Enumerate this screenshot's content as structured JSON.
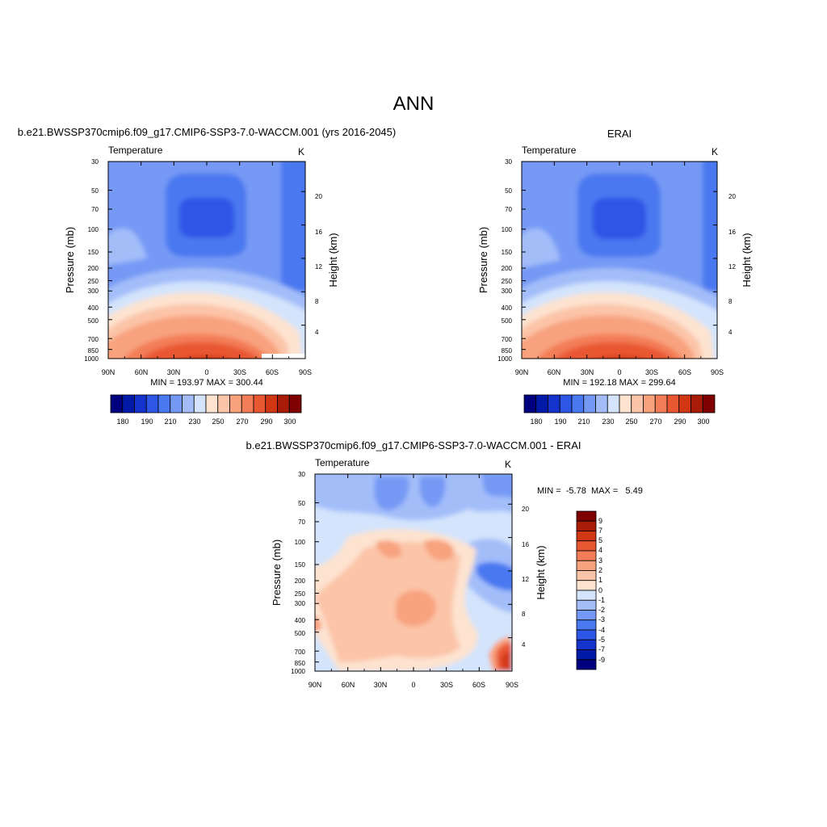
{
  "figure": {
    "title": "ANN"
  },
  "panels": [
    {
      "id": "model",
      "header": "b.e21.BWSSP370cmip6.f09_g17.CMIP6-SSP3-7.0-WACCM.001 (yrs 2016-2045)",
      "left_label": "Temperature",
      "right_label": "K",
      "stats": "MIN = 193.97  MAX = 300.44",
      "ylabel": "Pressure (mb)",
      "y2label": "Height (km)"
    },
    {
      "id": "obs",
      "header": "ERAI",
      "left_label": "Temperature",
      "right_label": "K",
      "stats": "MIN = 192.18  MAX = 299.64",
      "ylabel": "Pressure (mb)",
      "y2label": "Height (km)"
    },
    {
      "id": "diff",
      "header": "b.e21.BWSSP370cmip6.f09_g17.CMIP6-SSP3-7.0-WACCM.001 - ERAI",
      "left_label": "Temperature",
      "right_label": "K",
      "stats": "MIN =  -5.78  MAX =   5.49",
      "ylabel": "Pressure (mb)",
      "y2label": "Height (km)"
    }
  ],
  "chart_data": {
    "type": "heatmap",
    "x_ticks": [
      "90N",
      "60N",
      "30N",
      "0",
      "30S",
      "60S",
      "90S"
    ],
    "x_values": [
      90,
      60,
      30,
      0,
      -30,
      -60,
      -90
    ],
    "y_ticks": [
      "30",
      "50",
      "70",
      "100",
      "150",
      "200",
      "250",
      "300",
      "400",
      "500",
      "700",
      "850",
      "1000"
    ],
    "y_values": [
      30,
      50,
      70,
      100,
      150,
      200,
      250,
      300,
      400,
      500,
      700,
      850,
      1000
    ],
    "y_scale": "log",
    "y_range": [
      30,
      1000
    ],
    "y2_ticks": [
      "4",
      "8",
      "12",
      "16",
      "20"
    ],
    "y2_values": [
      4,
      8,
      12,
      16,
      20
    ],
    "abs_colorbar": {
      "labels": [
        "180",
        "190",
        "210",
        "230",
        "250",
        "270",
        "290",
        "300"
      ],
      "colors": [
        "#00007f",
        "#0019a6",
        "#1432cc",
        "#2d55e6",
        "#4a78f0",
        "#7499f5",
        "#a3bdf9",
        "#d3e4fc",
        "#fde3d0",
        "#fcc4a8",
        "#f8a27e",
        "#f37d57",
        "#e85632",
        "#d23714",
        "#a81c08",
        "#7f0000"
      ]
    },
    "diff_colorbar": {
      "labels": [
        "9",
        "7",
        "5",
        "4",
        "3",
        "2",
        "1",
        "0",
        "-1",
        "-2",
        "-3",
        "-4",
        "-5",
        "-7",
        "-9"
      ],
      "colors": [
        "#7f0000",
        "#a81c08",
        "#d23714",
        "#e85632",
        "#f37d57",
        "#f8a27e",
        "#fcc4a8",
        "#fde3d0",
        "#d3e4fc",
        "#a3bdf9",
        "#7499f5",
        "#4a78f0",
        "#2d55e6",
        "#1432cc",
        "#0019a6",
        "#00007f"
      ]
    },
    "model_range": [
      193.97,
      300.44
    ],
    "obs_range": [
      192.18,
      299.64
    ],
    "diff_range": [
      -5.78,
      5.49
    ]
  }
}
